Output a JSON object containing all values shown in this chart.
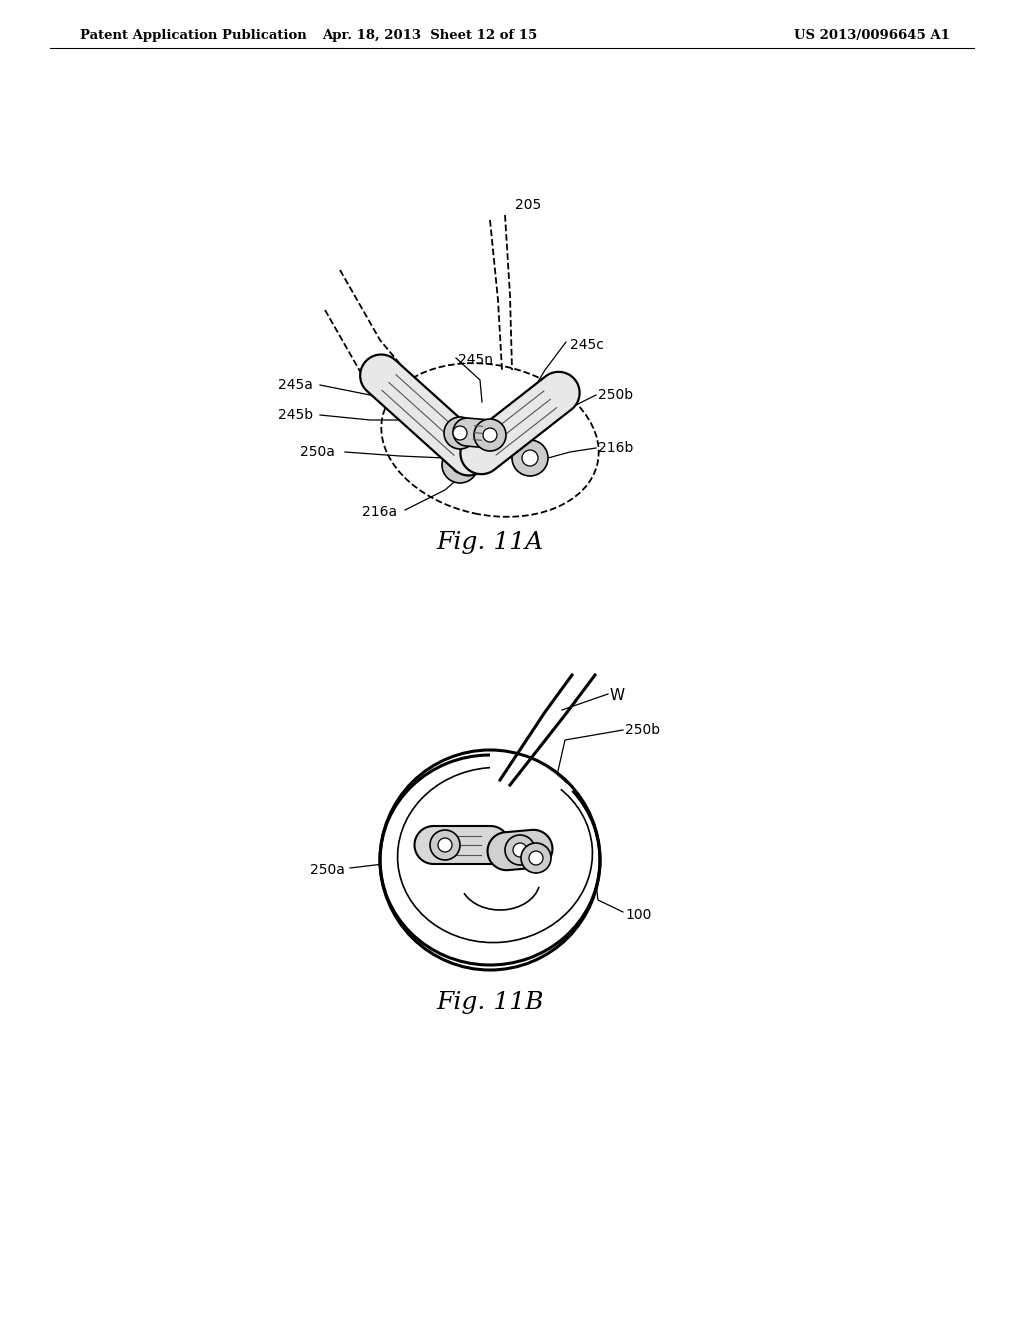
{
  "background_color": "#ffffff",
  "header_left": "Patent Application Publication",
  "header_mid": "Apr. 18, 2013  Sheet 12 of 15",
  "header_right": "US 2013/0096645 A1",
  "fig_label_A": "Fig. 11A",
  "fig_label_B": "Fig. 11B"
}
